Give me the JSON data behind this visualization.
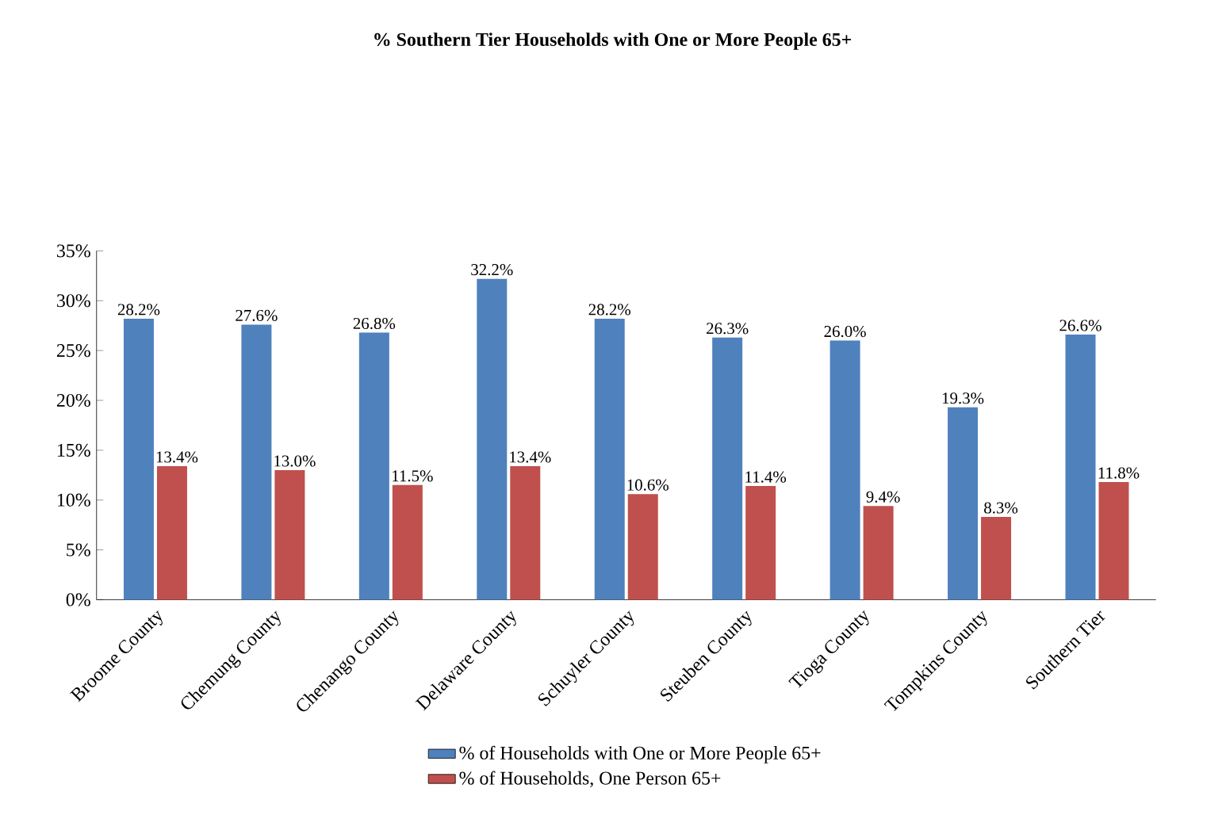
{
  "chart_data": {
    "type": "bar",
    "title": "% Southern Tier Households with One or More People 65+",
    "categories": [
      "Broome County",
      "Chemung County",
      "Chenango County",
      "Delaware County",
      "Schuyler County",
      "Steuben County",
      "Tioga County",
      "Tompkins County",
      "Southern Tier"
    ],
    "series": [
      {
        "name": "% of Households with One or More People 65+",
        "color": "#4f81bd",
        "values": [
          28.2,
          27.6,
          26.8,
          32.2,
          28.2,
          26.3,
          26.0,
          19.3,
          26.6
        ],
        "value_labels": [
          "28.2%",
          "27.6%",
          "26.8%",
          "32.2%",
          "28.2%",
          "26.3%",
          "26.0%",
          "19.3%",
          "26.6%"
        ]
      },
      {
        "name": "% of Households, One Person 65+",
        "color": "#c0504d",
        "values": [
          13.4,
          13.0,
          11.5,
          13.4,
          10.6,
          11.4,
          9.4,
          8.3,
          11.8
        ],
        "value_labels": [
          "13.4%",
          "13.0%",
          "11.5%",
          "13.4%",
          "10.6%",
          "11.4%",
          "9.4%",
          "8.3%",
          "11.8%"
        ]
      }
    ],
    "ylim": [
      0,
      35
    ],
    "yticks": [
      {
        "value": 0,
        "label": "0%"
      },
      {
        "value": 5,
        "label": "5%"
      },
      {
        "value": 10,
        "label": "10%"
      },
      {
        "value": 15,
        "label": "15%"
      },
      {
        "value": 20,
        "label": "20%"
      },
      {
        "value": 25,
        "label": "25%"
      },
      {
        "value": 30,
        "label": "30%"
      },
      {
        "value": 35,
        "label": "35%"
      }
    ],
    "legend": "bottom"
  }
}
